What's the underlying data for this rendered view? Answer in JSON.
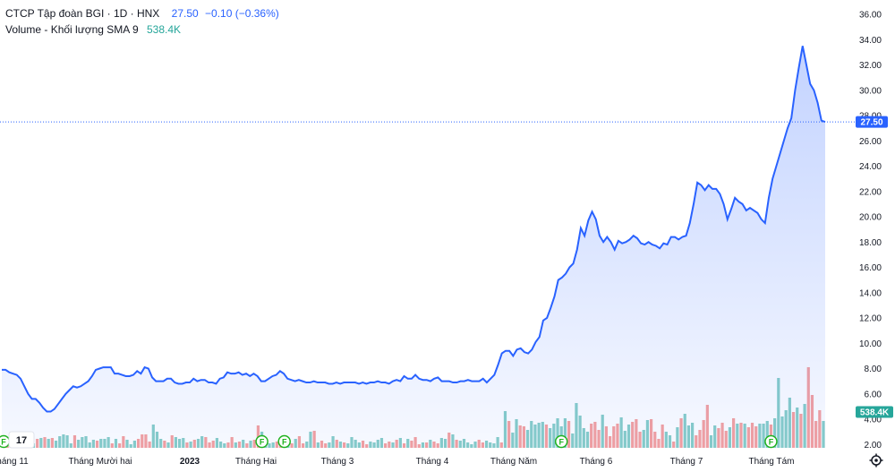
{
  "header": {
    "symbol_title": "CTCP Tập đoàn BGI · 1D · HNX",
    "last_price": "27.50",
    "change": "−0.10 (−0.36%)",
    "volume_label": "Volume - Khối lượng SMA 9",
    "volume_value": "538.4K"
  },
  "colors": {
    "price_line": "#2962ff",
    "area_fill": "#2962ff",
    "vol_up": "#26a69a",
    "vol_down": "#ef5350",
    "dividend_marker": "#1fb21f"
  },
  "icons": {
    "logo": "tradingview-logo-icon",
    "settings": "gear-icon",
    "dividend": "dividend-marker-icon"
  },
  "chart_data": {
    "type": "area",
    "y_axis": {
      "range": [
        1.5,
        37
      ],
      "ticks": [
        "36.00",
        "34.00",
        "32.00",
        "30.00",
        "28.00",
        "26.00",
        "24.00",
        "22.00",
        "20.00",
        "18.00",
        "16.00",
        "14.00",
        "12.00",
        "10.00",
        "8.00",
        "6.00",
        "4.00",
        "2.00"
      ]
    },
    "x_axis": {
      "ticks": [
        {
          "label": "háng 11",
          "bold": false
        },
        {
          "label": "Tháng Mười hai",
          "bold": false
        },
        {
          "label": "2023",
          "bold": true
        },
        {
          "label": "Tháng Hai",
          "bold": false
        },
        {
          "label": "Tháng 3",
          "bold": false
        },
        {
          "label": "Tháng 4",
          "bold": false
        },
        {
          "label": "Tháng Năm",
          "bold": false
        },
        {
          "label": "Tháng 6",
          "bold": false
        },
        {
          "label": "Tháng 7",
          "bold": false
        },
        {
          "label": "Tháng Tám",
          "bold": false
        }
      ]
    },
    "last_price_label": "27.50",
    "last_volume_label": "538.4K",
    "price_series": [
      7.9,
      7.9,
      7.7,
      7.6,
      7.5,
      7.2,
      6.6,
      6.0,
      5.6,
      5.6,
      5.3,
      4.9,
      4.6,
      4.6,
      4.8,
      5.2,
      5.6,
      6.0,
      6.3,
      6.6,
      6.5,
      6.6,
      6.8,
      7.0,
      7.4,
      7.9,
      8.0,
      8.1,
      8.1,
      8.1,
      7.6,
      7.6,
      7.5,
      7.4,
      7.4,
      7.5,
      7.8,
      7.6,
      8.1,
      8.0,
      7.3,
      7.0,
      7.0,
      7.0,
      7.2,
      7.2,
      6.9,
      6.8,
      6.8,
      6.9,
      6.9,
      7.2,
      7.0,
      7.1,
      7.1,
      6.9,
      6.9,
      6.8,
      7.2,
      7.3,
      7.7,
      7.6,
      7.6,
      7.7,
      7.5,
      7.6,
      7.4,
      7.6,
      7.4,
      7.0,
      7.0,
      7.2,
      7.4,
      7.5,
      7.8,
      7.6,
      7.2,
      7.1,
      7.0,
      7.1,
      7.0,
      6.9,
      6.9,
      7.0,
      6.9,
      6.9,
      6.9,
      6.8,
      6.8,
      6.9,
      6.8,
      6.9,
      6.9,
      6.9,
      6.9,
      6.8,
      6.9,
      6.8,
      6.9,
      6.9,
      7.0,
      6.9,
      6.9,
      6.8,
      7.0,
      7.1,
      7.0,
      7.4,
      7.2,
      7.2,
      7.5,
      7.2,
      7.1,
      7.1,
      7.0,
      7.2,
      7.3,
      7.0,
      7.0,
      7.0,
      6.9,
      6.9,
      7.0,
      7.0,
      7.1,
      7.0,
      7.0,
      7.0,
      7.2,
      6.9,
      7.2,
      7.5,
      8.3,
      9.2,
      9.4,
      9.4,
      9.0,
      9.5,
      9.6,
      9.3,
      9.2,
      9.5,
      10.1,
      10.5,
      11.8,
      12.0,
      12.8,
      13.7,
      15.0,
      15.2,
      15.5,
      16.0,
      16.3,
      17.4,
      19.1,
      18.5,
      19.7,
      20.4,
      19.8,
      18.5,
      18.0,
      18.4,
      18.0,
      17.4,
      18.1,
      17.9,
      18.0,
      18.2,
      18.5,
      18.3,
      17.9,
      17.8,
      18.0,
      17.8,
      17.7,
      17.5,
      17.9,
      17.8,
      18.4,
      18.4,
      18.2,
      18.4,
      18.5,
      19.5,
      21.0,
      22.7,
      22.5,
      22.1,
      22.5,
      22.2,
      22.2,
      21.8,
      21.0,
      19.8,
      20.6,
      21.5,
      21.2,
      21.0,
      20.5,
      20.7,
      20.5,
      20.3,
      19.8,
      19.5,
      21.5,
      23.0,
      24.0,
      25.0,
      26.0,
      27.0,
      27.8,
      30.0,
      31.8,
      33.5,
      32.0,
      30.5,
      30.0,
      29.0,
      27.6,
      27.5
    ],
    "volume_series": [
      1.2,
      0.6,
      0.5,
      0.7,
      0.4,
      1.1,
      0.9,
      1.2,
      0.5,
      1.0,
      1.1,
      1.2,
      1.0,
      1.1,
      0.8,
      1.3,
      1.5,
      1.4,
      0.5,
      1.4,
      0.9,
      1.2,
      1.3,
      0.6,
      0.9,
      0.8,
      1.0,
      1.0,
      1.2,
      0.5,
      1.0,
      0.5,
      1.3,
      0.9,
      0.4,
      0.8,
      1.0,
      1.5,
      1.5,
      0.7,
      2.6,
      1.8,
      1.0,
      0.8,
      0.6,
      1.4,
      1.2,
      1.0,
      1.1,
      0.6,
      0.7,
      0.9,
      1.0,
      1.3,
      1.2,
      0.6,
      0.8,
      1.1,
      0.7,
      0.5,
      0.6,
      1.2,
      0.6,
      0.7,
      0.9,
      0.5,
      0.8,
      0.9,
      2.5,
      1.8,
      0.9,
      0.5,
      0.6,
      0.7,
      0.9,
      1.2,
      0.6,
      0.5,
      1.0,
      1.3,
      0.5,
      0.7,
      1.8,
      1.9,
      0.6,
      0.8,
      0.5,
      0.6,
      1.3,
      0.9,
      0.7,
      0.6,
      0.5,
      1.2,
      0.9,
      0.6,
      0.8,
      0.4,
      0.7,
      0.6,
      0.9,
      1.1,
      0.5,
      0.7,
      0.6,
      0.9,
      1.1,
      0.5,
      1.0,
      0.8,
      1.2,
      0.4,
      0.6,
      0.6,
      0.9,
      0.7,
      0.5,
      1.1,
      1.0,
      1.7,
      1.5,
      0.9,
      0.8,
      1.0,
      0.6,
      0.4,
      0.7,
      0.9,
      0.6,
      0.8,
      0.6,
      0.5,
      1.2,
      0.6,
      4.1,
      3.0,
      1.7,
      3.2,
      2.5,
      2.4,
      2.0,
      3.0,
      2.6,
      2.8,
      2.9,
      2.6,
      2.2,
      2.7,
      3.3,
      2.4,
      3.3,
      3.0,
      1.6,
      5.0,
      3.6,
      2.2,
      1.8,
      2.7,
      2.9,
      2.0,
      3.7,
      2.4,
      1.3,
      2.4,
      2.7,
      3.4,
      1.9,
      2.6,
      2.9,
      3.2,
      1.8,
      2.0,
      3.1,
      3.2,
      1.8,
      1.0,
      2.6,
      1.8,
      1.4,
      0.7,
      2.3,
      3.3,
      3.8,
      2.5,
      2.8,
      1.4,
      2.0,
      3.1,
      4.8,
      1.4,
      2.5,
      2.2,
      2.8,
      1.9,
      2.3,
      3.3,
      2.7,
      2.8,
      2.7,
      2.3,
      2.8,
      2.4,
      2.7,
      2.7,
      3.0,
      2.6,
      3.3,
      7.8,
      3.5,
      4.2,
      5.6,
      4.0,
      4.5,
      3.8,
      4.9,
      9.0,
      5.9,
      3.0,
      4.2,
      3.0
    ],
    "dividend_marker_indices": [
      0,
      69,
      75,
      149,
      205
    ]
  }
}
